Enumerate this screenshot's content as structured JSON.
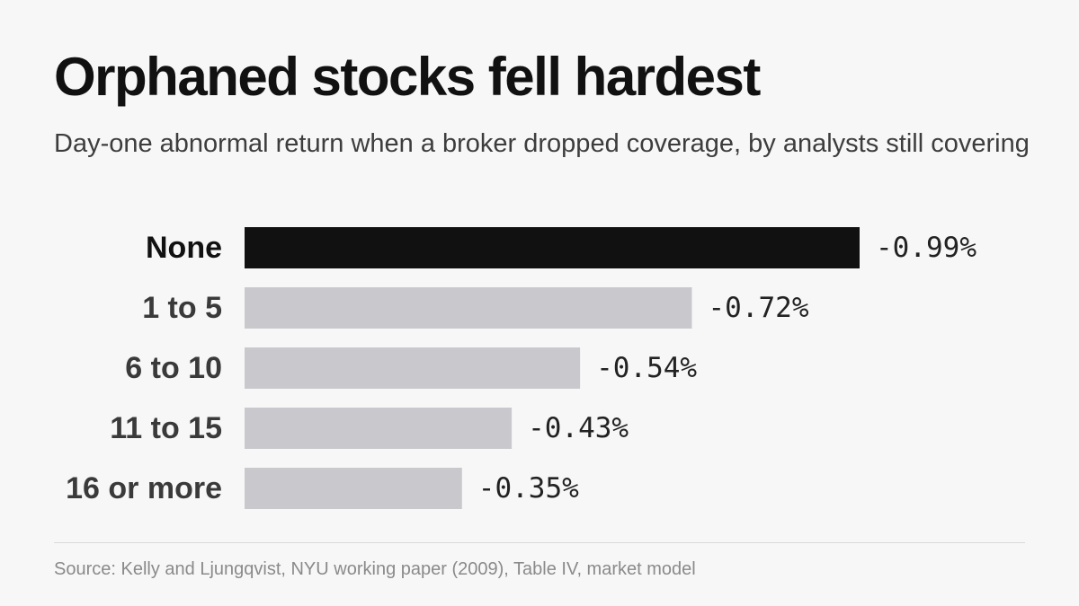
{
  "title": "Orphaned stocks fell hardest",
  "subtitle": "Day-one abnormal return when a broker dropped coverage, by analysts still covering",
  "source": "Source: Kelly and Ljungqvist, NYU working paper (2009), Table IV, market model",
  "colors": {
    "highlight_bar": "#111111",
    "default_bar": "#c9c8cc",
    "background": "#f7f7f7"
  },
  "chart_data": {
    "type": "bar",
    "orientation": "horizontal",
    "categories": [
      "None",
      "1 to 5",
      "6 to 10",
      "11 to 15",
      "16 or more"
    ],
    "values": [
      -0.99,
      -0.72,
      -0.54,
      -0.43,
      -0.35
    ],
    "value_labels": [
      "-0.99%",
      "-0.72%",
      "-0.54%",
      "-0.43%",
      "-0.35%"
    ],
    "highlight": [
      "None"
    ],
    "xlim": [
      0,
      -0.99
    ],
    "grid": false,
    "legend": "none",
    "xlabel": "",
    "ylabel": ""
  }
}
